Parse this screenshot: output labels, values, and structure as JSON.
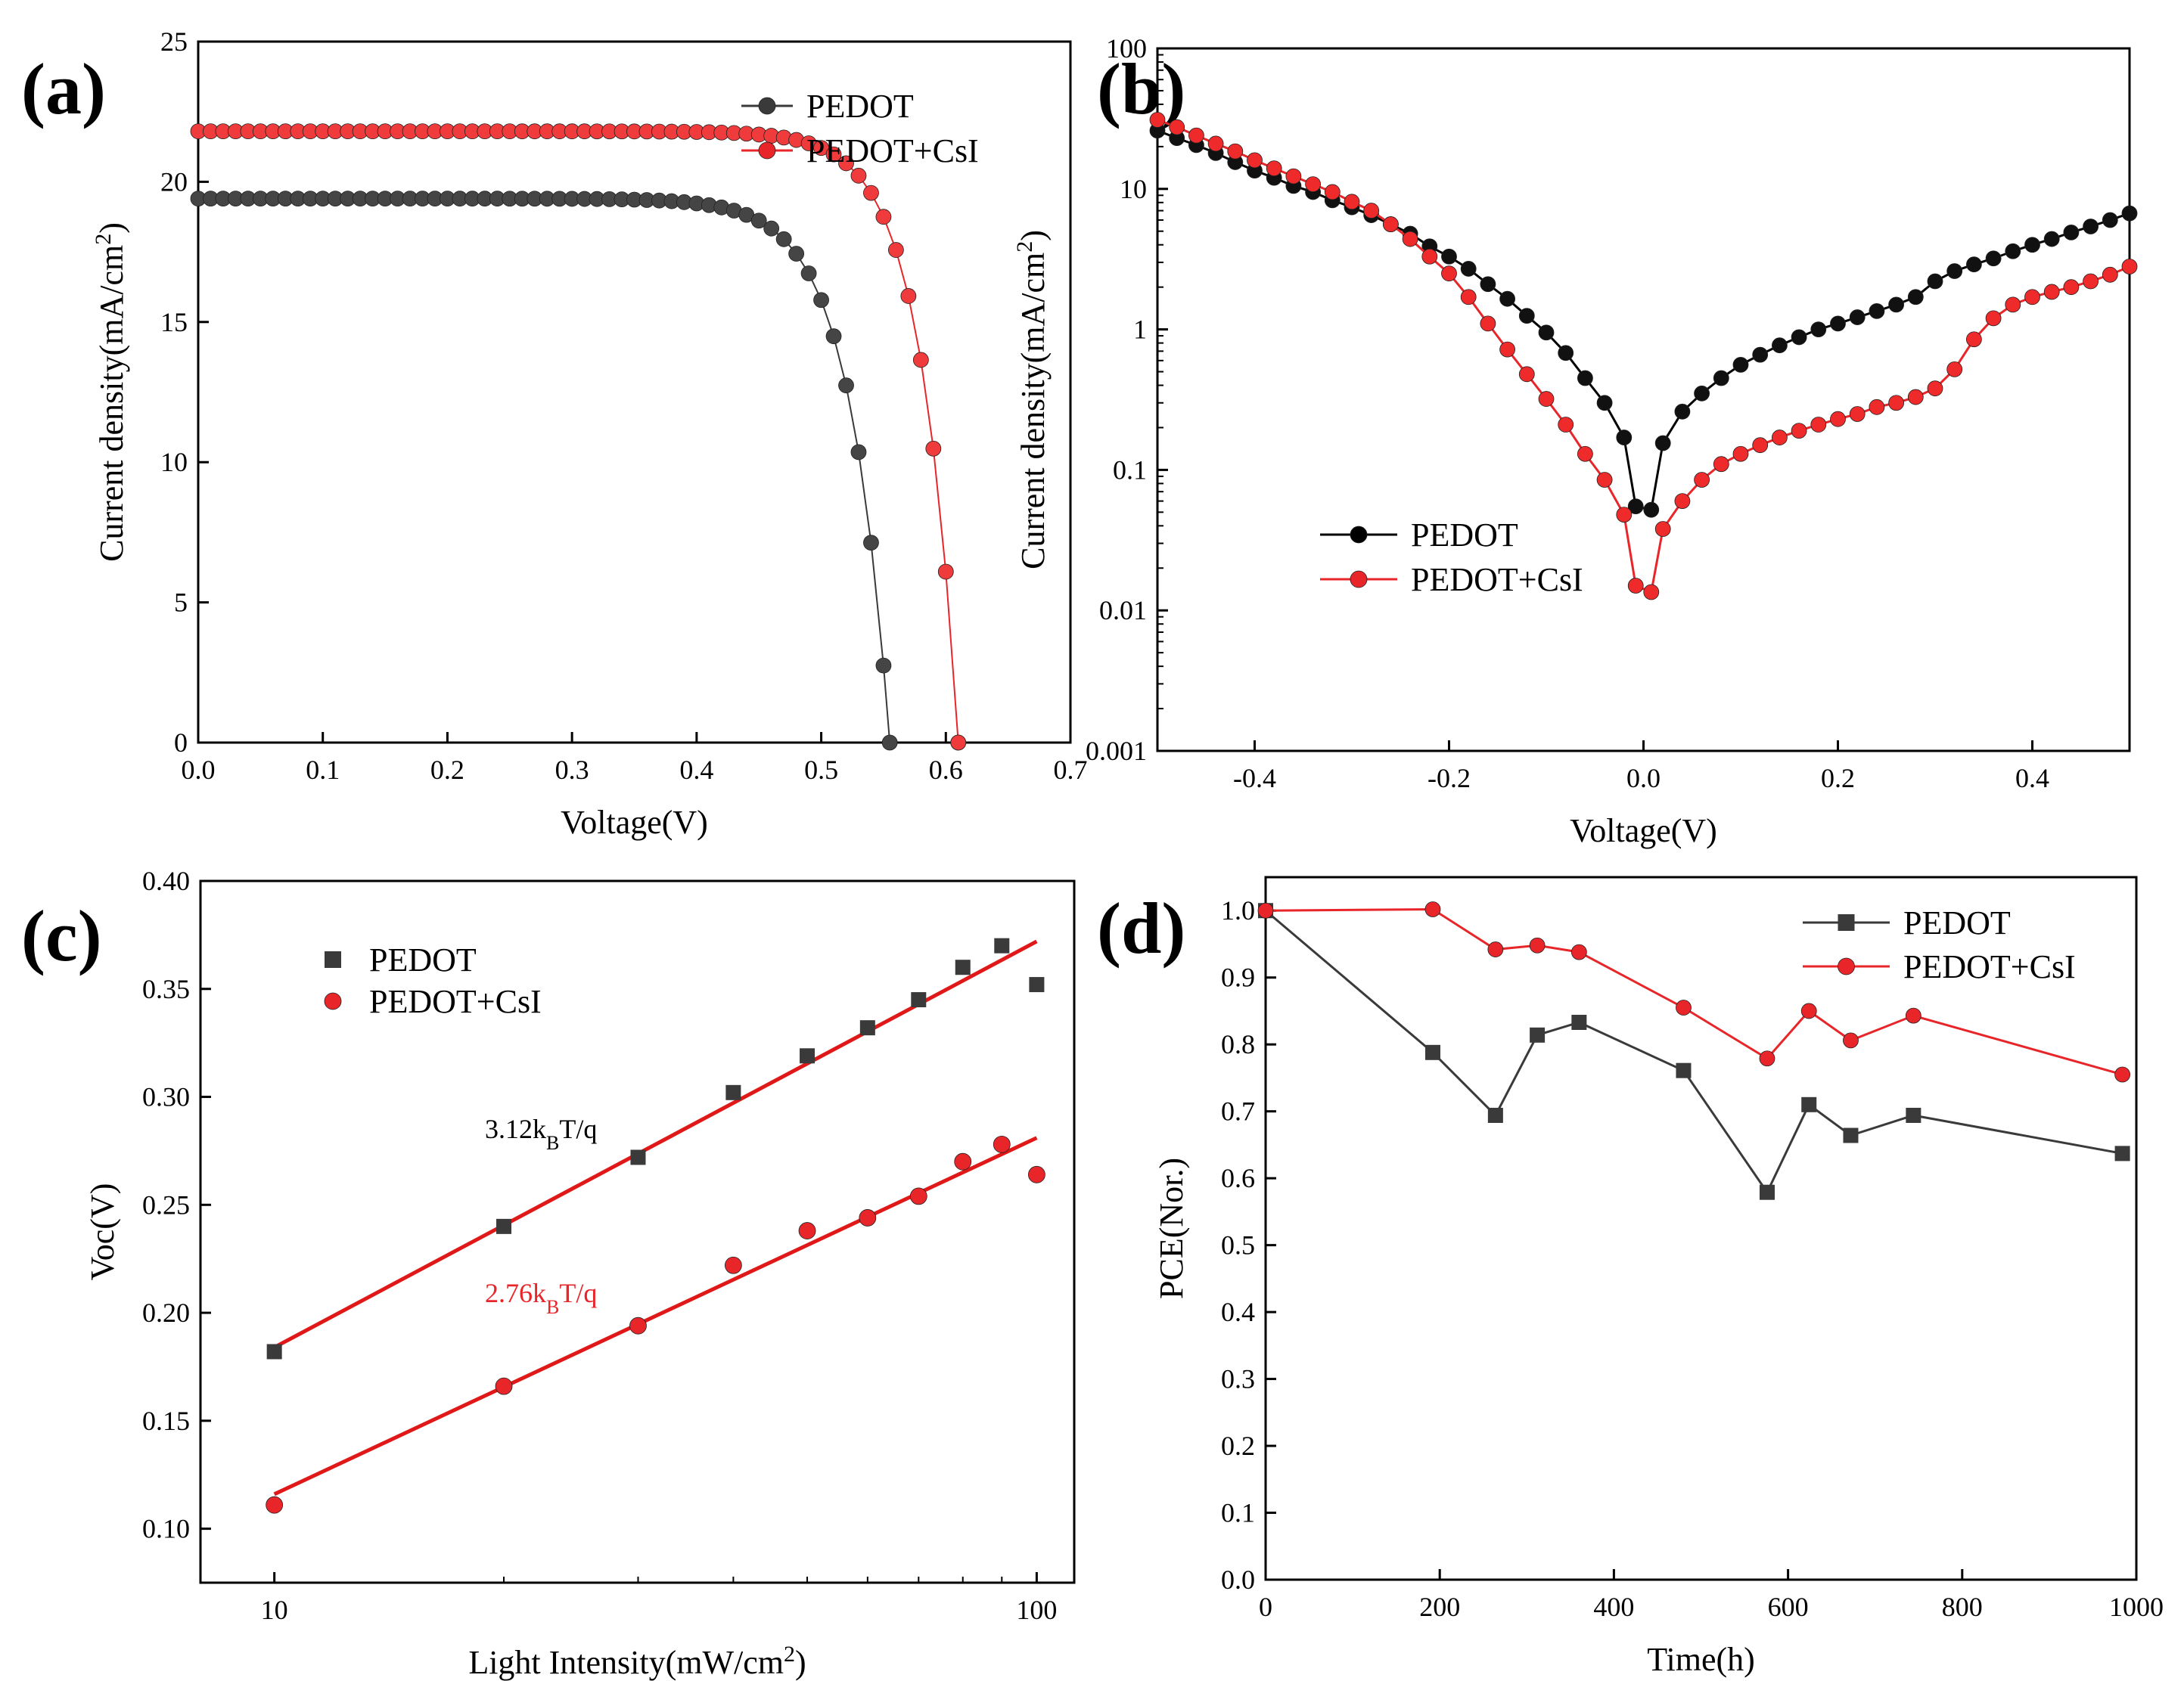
{
  "chart_data": [
    {
      "panel": "(a)",
      "type": "line",
      "xlabel": "Voltage(V)",
      "ylabel": "Current density(mA/cm",
      "ylabel_sup": "2",
      "ylabel_end": ")",
      "xlim": [
        0.0,
        0.7
      ],
      "ylim": [
        0,
        25
      ],
      "xticks": [
        0.0,
        0.1,
        0.2,
        0.3,
        0.4,
        0.5,
        0.6,
        0.7
      ],
      "xtick_labels": [
        "0.0",
        "0.1",
        "0.2",
        "0.3",
        "0.4",
        "0.5",
        "0.6",
        "0.7"
      ],
      "yticks": [
        0,
        5,
        10,
        15,
        20,
        25
      ],
      "ytick_labels": [
        "0",
        "5",
        "10",
        "15",
        "20",
        "25"
      ],
      "legend": "top-right",
      "series": [
        {
          "name": "PEDOT",
          "color": "#3a3a3a",
          "jsc": 19.4,
          "voc": 0.555,
          "vstep": 0.01,
          "knee": 0.059
        },
        {
          "name": "PEDOT+CsI",
          "color": "#e8262a",
          "jsc": 21.8,
          "voc": 0.61,
          "vstep": 0.01,
          "knee": 0.05
        }
      ]
    },
    {
      "panel": "(b)",
      "type": "line",
      "yscale": "log",
      "xlabel": "Voltage(V)",
      "ylabel": "Current density(mA/cm",
      "ylabel_sup": "2",
      "ylabel_end": ")",
      "xlim": [
        -0.5,
        0.5
      ],
      "ylim": [
        0.001,
        100
      ],
      "xticks": [
        -0.4,
        -0.2,
        0.0,
        0.2,
        0.4
      ],
      "xtick_labels": [
        "-0.4",
        "-0.2",
        "0.0",
        "0.2",
        "0.4"
      ],
      "yticks": [
        0.001,
        0.01,
        0.1,
        1,
        10,
        100
      ],
      "ytick_labels": [
        "0.001",
        "0.01",
        "0.1",
        "1",
        "10",
        "100"
      ],
      "legend": "center-left",
      "series": [
        {
          "name": "PEDOT",
          "color": "#000000",
          "x": [
            -0.5,
            -0.48,
            -0.46,
            -0.44,
            -0.42,
            -0.4,
            -0.38,
            -0.36,
            -0.34,
            -0.32,
            -0.3,
            -0.28,
            -0.26,
            -0.24,
            -0.22,
            -0.2,
            -0.18,
            -0.16,
            -0.14,
            -0.12,
            -0.1,
            -0.08,
            -0.06,
            -0.04,
            -0.02,
            -0.008,
            0.008,
            0.02,
            0.04,
            0.06,
            0.08,
            0.1,
            0.12,
            0.14,
            0.16,
            0.18,
            0.2,
            0.22,
            0.24,
            0.26,
            0.28,
            0.3,
            0.32,
            0.34,
            0.36,
            0.38,
            0.4,
            0.42,
            0.44,
            0.46,
            0.48,
            0.5
          ],
          "y": [
            26,
            23,
            20.5,
            18,
            15.5,
            13.5,
            12,
            10.5,
            9.5,
            8.3,
            7.4,
            6.5,
            5.6,
            4.8,
            3.9,
            3.3,
            2.7,
            2.1,
            1.65,
            1.25,
            0.95,
            0.68,
            0.45,
            0.3,
            0.17,
            0.055,
            0.052,
            0.155,
            0.26,
            0.35,
            0.45,
            0.56,
            0.66,
            0.77,
            0.88,
            1.0,
            1.1,
            1.22,
            1.35,
            1.5,
            1.7,
            2.2,
            2.6,
            2.9,
            3.2,
            3.6,
            4.0,
            4.4,
            4.9,
            5.4,
            6.0,
            6.7
          ]
        },
        {
          "name": "PEDOT+CsI",
          "color": "#e8262a",
          "x": [
            -0.5,
            -0.48,
            -0.46,
            -0.44,
            -0.42,
            -0.4,
            -0.38,
            -0.36,
            -0.34,
            -0.32,
            -0.3,
            -0.28,
            -0.26,
            -0.24,
            -0.22,
            -0.2,
            -0.18,
            -0.16,
            -0.14,
            -0.12,
            -0.1,
            -0.08,
            -0.06,
            -0.04,
            -0.02,
            -0.008,
            0.008,
            0.02,
            0.04,
            0.06,
            0.08,
            0.1,
            0.12,
            0.14,
            0.16,
            0.18,
            0.2,
            0.22,
            0.24,
            0.26,
            0.28,
            0.3,
            0.32,
            0.34,
            0.36,
            0.38,
            0.4,
            0.42,
            0.44,
            0.46,
            0.48,
            0.5
          ],
          "y": [
            31,
            27.5,
            24,
            21,
            18.5,
            16,
            14,
            12.3,
            10.8,
            9.5,
            8.1,
            7.0,
            5.6,
            4.4,
            3.3,
            2.5,
            1.7,
            1.1,
            0.72,
            0.48,
            0.32,
            0.21,
            0.13,
            0.085,
            0.048,
            0.015,
            0.0135,
            0.038,
            0.06,
            0.085,
            0.11,
            0.13,
            0.15,
            0.17,
            0.19,
            0.21,
            0.23,
            0.25,
            0.28,
            0.3,
            0.33,
            0.38,
            0.52,
            0.85,
            1.2,
            1.5,
            1.7,
            1.85,
            2.0,
            2.2,
            2.45,
            2.8
          ]
        }
      ]
    },
    {
      "panel": "(c)",
      "type": "scatter",
      "xscale": "log",
      "xlabel": "Light Intensity(mW/cm",
      "xlabel_sup": "2",
      "xlabel_end": ")",
      "ylabel": "Voc(V)",
      "xlim": [
        8,
        112
      ],
      "ylim": [
        0.075,
        0.4
      ],
      "xticks": [
        10,
        100
      ],
      "xtick_labels": [
        "10",
        "100"
      ],
      "yticks": [
        0.1,
        0.15,
        0.2,
        0.25,
        0.3,
        0.35,
        0.4
      ],
      "ytick_labels": [
        "0.10",
        "0.15",
        "0.20",
        "0.25",
        "0.30",
        "0.35",
        "0.40"
      ],
      "legend": "top-left",
      "annotations": [
        {
          "text": "3.12k",
          "sub": "B",
          "tail": "T/q",
          "x": 20,
          "y": 0.281,
          "color": "#000000"
        },
        {
          "text": "2.76k",
          "sub": "B",
          "tail": "T/q",
          "x": 20,
          "y": 0.205,
          "color": "#e8262a"
        }
      ],
      "series": [
        {
          "name": "PEDOT",
          "marker": "square",
          "color": "#3a3a3a",
          "x": [
            10,
            20,
            30,
            40,
            50,
            60,
            70,
            80,
            90,
            100
          ],
          "y": [
            0.182,
            0.24,
            0.272,
            0.302,
            0.319,
            0.332,
            0.345,
            0.36,
            0.37,
            0.352
          ],
          "fit": {
            "x": [
              10,
              100
            ],
            "y": [
              0.184,
              0.372
            ],
            "color": "#e01818"
          }
        },
        {
          "name": "PEDOT+CsI",
          "marker": "circle",
          "color": "#e8262a",
          "x": [
            10,
            20,
            30,
            40,
            50,
            60,
            70,
            80,
            90,
            100
          ],
          "y": [
            0.111,
            0.166,
            0.194,
            0.222,
            0.238,
            0.244,
            0.254,
            0.27,
            0.278,
            0.264
          ],
          "fit": {
            "x": [
              10,
              100
            ],
            "y": [
              0.116,
              0.281
            ],
            "color": "#e01818"
          }
        }
      ]
    },
    {
      "panel": "(d)",
      "type": "line",
      "xlabel": "Time(h)",
      "ylabel": "PCE(Nor.)",
      "xlim": [
        0,
        1000
      ],
      "ylim": [
        0,
        1.05
      ],
      "xticks": [
        0,
        200,
        400,
        600,
        800,
        1000
      ],
      "xtick_labels": [
        "0",
        "200",
        "400",
        "600",
        "800",
        "1000"
      ],
      "yticks": [
        0,
        0.1,
        0.2,
        0.3,
        0.4,
        0.5,
        0.6,
        0.7,
        0.8,
        0.9,
        1.0
      ],
      "ytick_labels": [
        "0.0",
        "0.1",
        "0.2",
        "0.3",
        "0.4",
        "0.5",
        "0.6",
        "0.7",
        "0.8",
        "0.9",
        "1.0"
      ],
      "legend": "top-right",
      "series": [
        {
          "name": "PEDOT",
          "marker": "square",
          "color": "#3a3a3a",
          "x": [
            0,
            192,
            264,
            312,
            360,
            480,
            576,
            624,
            672,
            744,
            984
          ],
          "y": [
            1.0,
            0.788,
            0.694,
            0.814,
            0.833,
            0.761,
            0.579,
            0.71,
            0.664,
            0.694,
            0.637
          ]
        },
        {
          "name": "PEDOT+CsI",
          "marker": "circle",
          "color": "#e8262a",
          "x": [
            0,
            192,
            264,
            312,
            360,
            480,
            576,
            624,
            672,
            744,
            984
          ],
          "y": [
            1.0,
            1.002,
            0.942,
            0.948,
            0.938,
            0.855,
            0.779,
            0.85,
            0.806,
            0.843,
            0.755
          ]
        }
      ]
    }
  ]
}
